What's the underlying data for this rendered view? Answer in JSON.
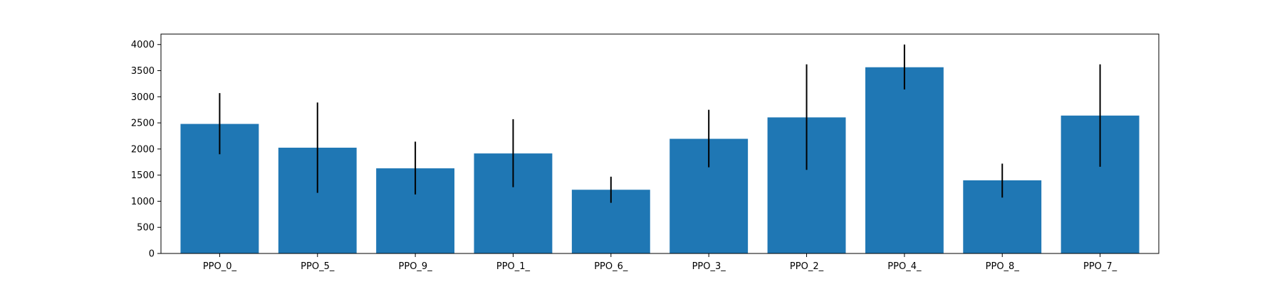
{
  "chart_data": {
    "type": "bar",
    "categories": [
      "PPO_0_",
      "PPO_5_",
      "PPO_9_",
      "PPO_1_",
      "PPO_6_",
      "PPO_3_",
      "PPO_2_",
      "PPO_4_",
      "PPO_8_",
      "PPO_7_"
    ],
    "values": [
      2480,
      2025,
      1630,
      1915,
      1220,
      2195,
      2605,
      3565,
      1400,
      2640
    ],
    "error_bars": {
      "lower": [
        1900,
        1160,
        1130,
        1270,
        970,
        1650,
        1600,
        3140,
        1070,
        1660
      ],
      "upper": [
        3070,
        2890,
        2140,
        2570,
        1470,
        2750,
        3620,
        4000,
        1720,
        3620
      ]
    },
    "yticks": [
      0,
      500,
      1000,
      1500,
      2000,
      2500,
      3000,
      3500,
      4000
    ],
    "ylim": [
      0,
      4200
    ],
    "title": "",
    "xlabel": "",
    "ylabel": "",
    "grid": false,
    "colors": {
      "bar": "#1f77b4",
      "error": "#000000",
      "axes": "#000000"
    }
  }
}
